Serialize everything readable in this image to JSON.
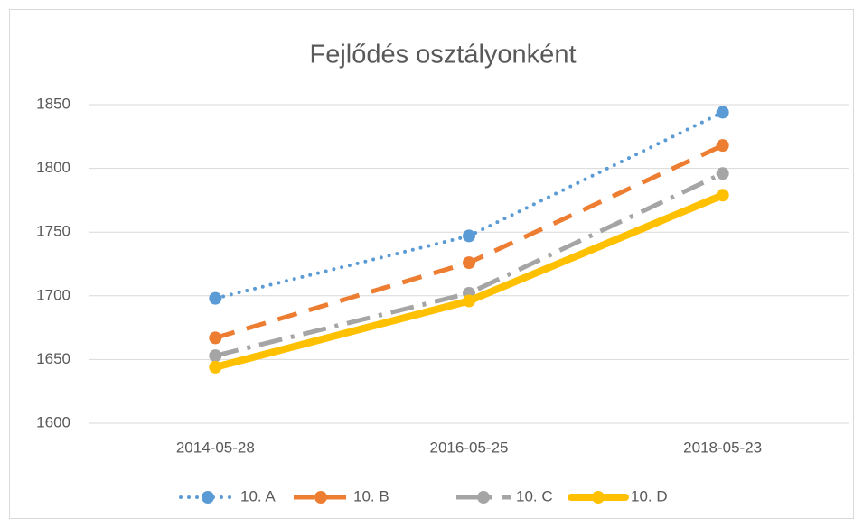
{
  "chart_data": {
    "type": "line",
    "title": "Fejlődés osztályonként",
    "categories": [
      "2014-05-28",
      "2016-05-25",
      "2018-05-23"
    ],
    "series": [
      {
        "name": "10. A",
        "color": "#5b9bd5",
        "line_style": "dotted",
        "values": [
          1698,
          1747,
          1844
        ]
      },
      {
        "name": "10. B",
        "color": "#ed7d31",
        "line_style": "dashed",
        "values": [
          1667,
          1726,
          1818
        ]
      },
      {
        "name": "10. C",
        "color": "#a5a5a5",
        "line_style": "dashdot",
        "values": [
          1653,
          1702,
          1796
        ]
      },
      {
        "name": "10. D",
        "color": "#ffc000",
        "line_style": "solid",
        "values": [
          1644,
          1696,
          1779
        ]
      }
    ],
    "ylim": [
      1600,
      1850
    ],
    "yticks": [
      1600,
      1650,
      1700,
      1750,
      1800,
      1850
    ],
    "grid": true,
    "legend": "bottom"
  }
}
